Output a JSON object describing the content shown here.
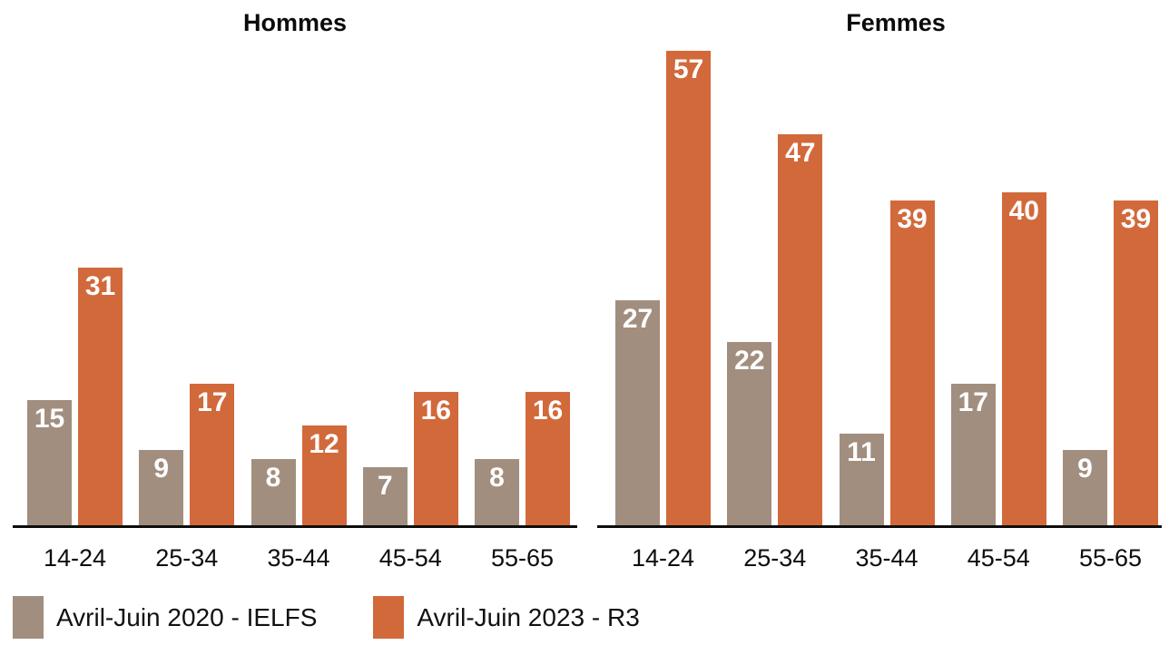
{
  "chart_data": {
    "type": "bar",
    "title": "",
    "categories": [
      "14-24",
      "25-34",
      "35-44",
      "45-54",
      "55-65"
    ],
    "panels": [
      {
        "title": "Hommes",
        "series": [
          {
            "name": "Avril-Juin 2020 - IELFS",
            "values": [
              15,
              9,
              8,
              7,
              8
            ]
          },
          {
            "name": "Avril-Juin 2023 - R3",
            "values": [
              31,
              17,
              12,
              16,
              16
            ]
          }
        ]
      },
      {
        "title": "Femmes",
        "series": [
          {
            "name": "Avril-Juin 2020 - IELFS",
            "values": [
              27,
              22,
              11,
              17,
              9
            ]
          },
          {
            "name": "Avril-Juin 2023 - R3",
            "values": [
              57,
              47,
              39,
              40,
              39
            ]
          }
        ]
      }
    ],
    "legend": [
      {
        "label": "Avril-Juin 2020 - IELFS",
        "color": "#A28E7F"
      },
      {
        "label": "Avril-Juin 2023 - R3",
        "color": "#D2693B"
      }
    ],
    "legend_position": "bottom-left",
    "value_labels": "inside-top-white",
    "grid": false,
    "xlabel": "",
    "ylabel": "",
    "ylim": [
      0,
      58
    ],
    "axis_color": "#0d0d0d"
  }
}
